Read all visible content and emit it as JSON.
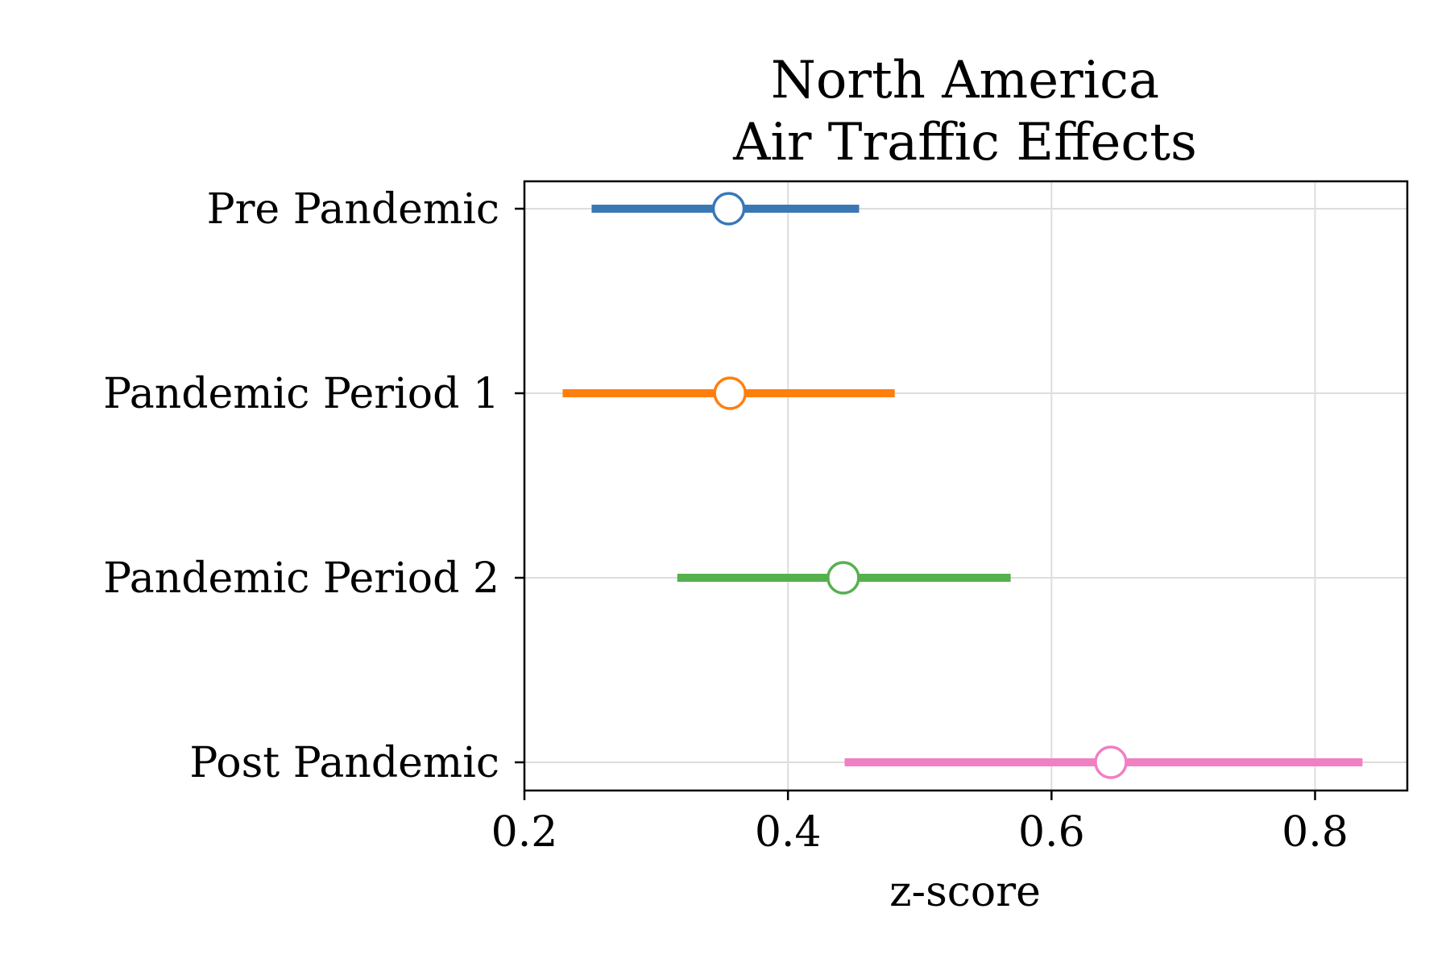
{
  "chart_data": {
    "type": "forest",
    "title_lines": [
      "North America",
      "Air Traffic Effects"
    ],
    "xlabel": "z-score",
    "ylabel": "",
    "xlim": [
      0.2,
      0.87
    ],
    "xticks": [
      0.2,
      0.4,
      0.6,
      0.8
    ],
    "xtick_labels": [
      "0.2",
      "0.4",
      "0.6",
      "0.8"
    ],
    "grid": true,
    "categories": [
      "Pre Pandemic",
      "Pandemic Period 1",
      "Pandemic Period 2",
      "Post Pandemic"
    ],
    "series": [
      {
        "estimate": 0.355,
        "lower": 0.251,
        "upper": 0.454,
        "color": "#3a78b5"
      },
      {
        "estimate": 0.356,
        "lower": 0.229,
        "upper": 0.481,
        "color": "#ff7f0e"
      },
      {
        "estimate": 0.442,
        "lower": 0.316,
        "upper": 0.569,
        "color": "#55b04e"
      },
      {
        "estimate": 0.645,
        "lower": 0.443,
        "upper": 0.836,
        "color": "#f07fc4"
      }
    ]
  }
}
